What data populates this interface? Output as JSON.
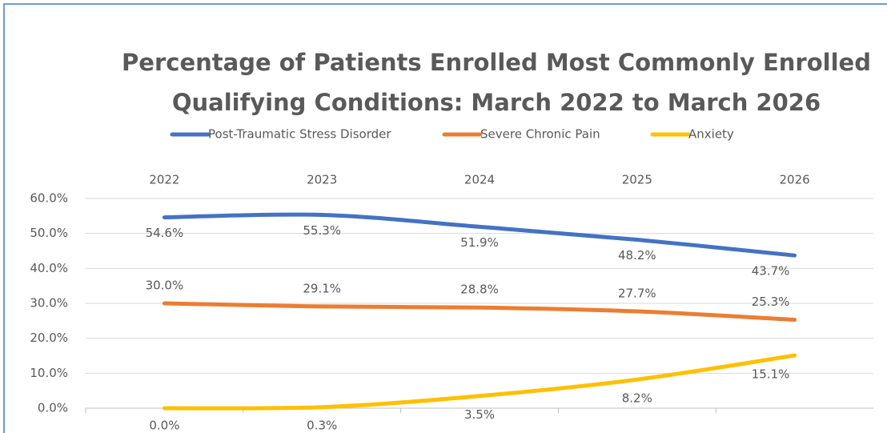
{
  "chart_data": {
    "type": "line",
    "title": [
      "Percentage of Patients Enrolled Most Commonly Enrolled",
      "Qualifying Conditions:  March 2022 to March 2026"
    ],
    "categories": [
      "2022",
      "2023",
      "2024",
      "2025",
      "2026"
    ],
    "series": [
      {
        "name": "Post-Traumatic Stress Disorder",
        "color": "#4472c4",
        "values": [
          54.6,
          55.3,
          51.9,
          48.2,
          43.7
        ],
        "value_labels": [
          "54.6%",
          "55.3%",
          "51.9%",
          "48.2%",
          "43.7%"
        ]
      },
      {
        "name": "Severe Chronic Pain",
        "color": "#ed7d31",
        "values": [
          30.0,
          29.1,
          28.8,
          27.7,
          25.3
        ],
        "value_labels": [
          "30.0%",
          "29.1%",
          "28.8%",
          "27.7%",
          "25.3%"
        ]
      },
      {
        "name": "Anxiety",
        "color": "#ffc000",
        "values": [
          0.0,
          0.3,
          3.5,
          8.2,
          15.1
        ],
        "value_labels": [
          "0.0%",
          "0.3%",
          "3.5%",
          "8.2%",
          "15.1%"
        ]
      }
    ],
    "ylim": [
      0,
      60
    ],
    "yticks": [
      {
        "value": 0,
        "label": "0.0%"
      },
      {
        "value": 10,
        "label": "10.0%"
      },
      {
        "value": 20,
        "label": "20.0%"
      },
      {
        "value": 30,
        "label": "30.0%"
      },
      {
        "value": 40,
        "label": "40.0%"
      },
      {
        "value": 50,
        "label": "50.0%"
      },
      {
        "value": 60,
        "label": "60.0%"
      }
    ],
    "grid": true,
    "legend": "top"
  }
}
